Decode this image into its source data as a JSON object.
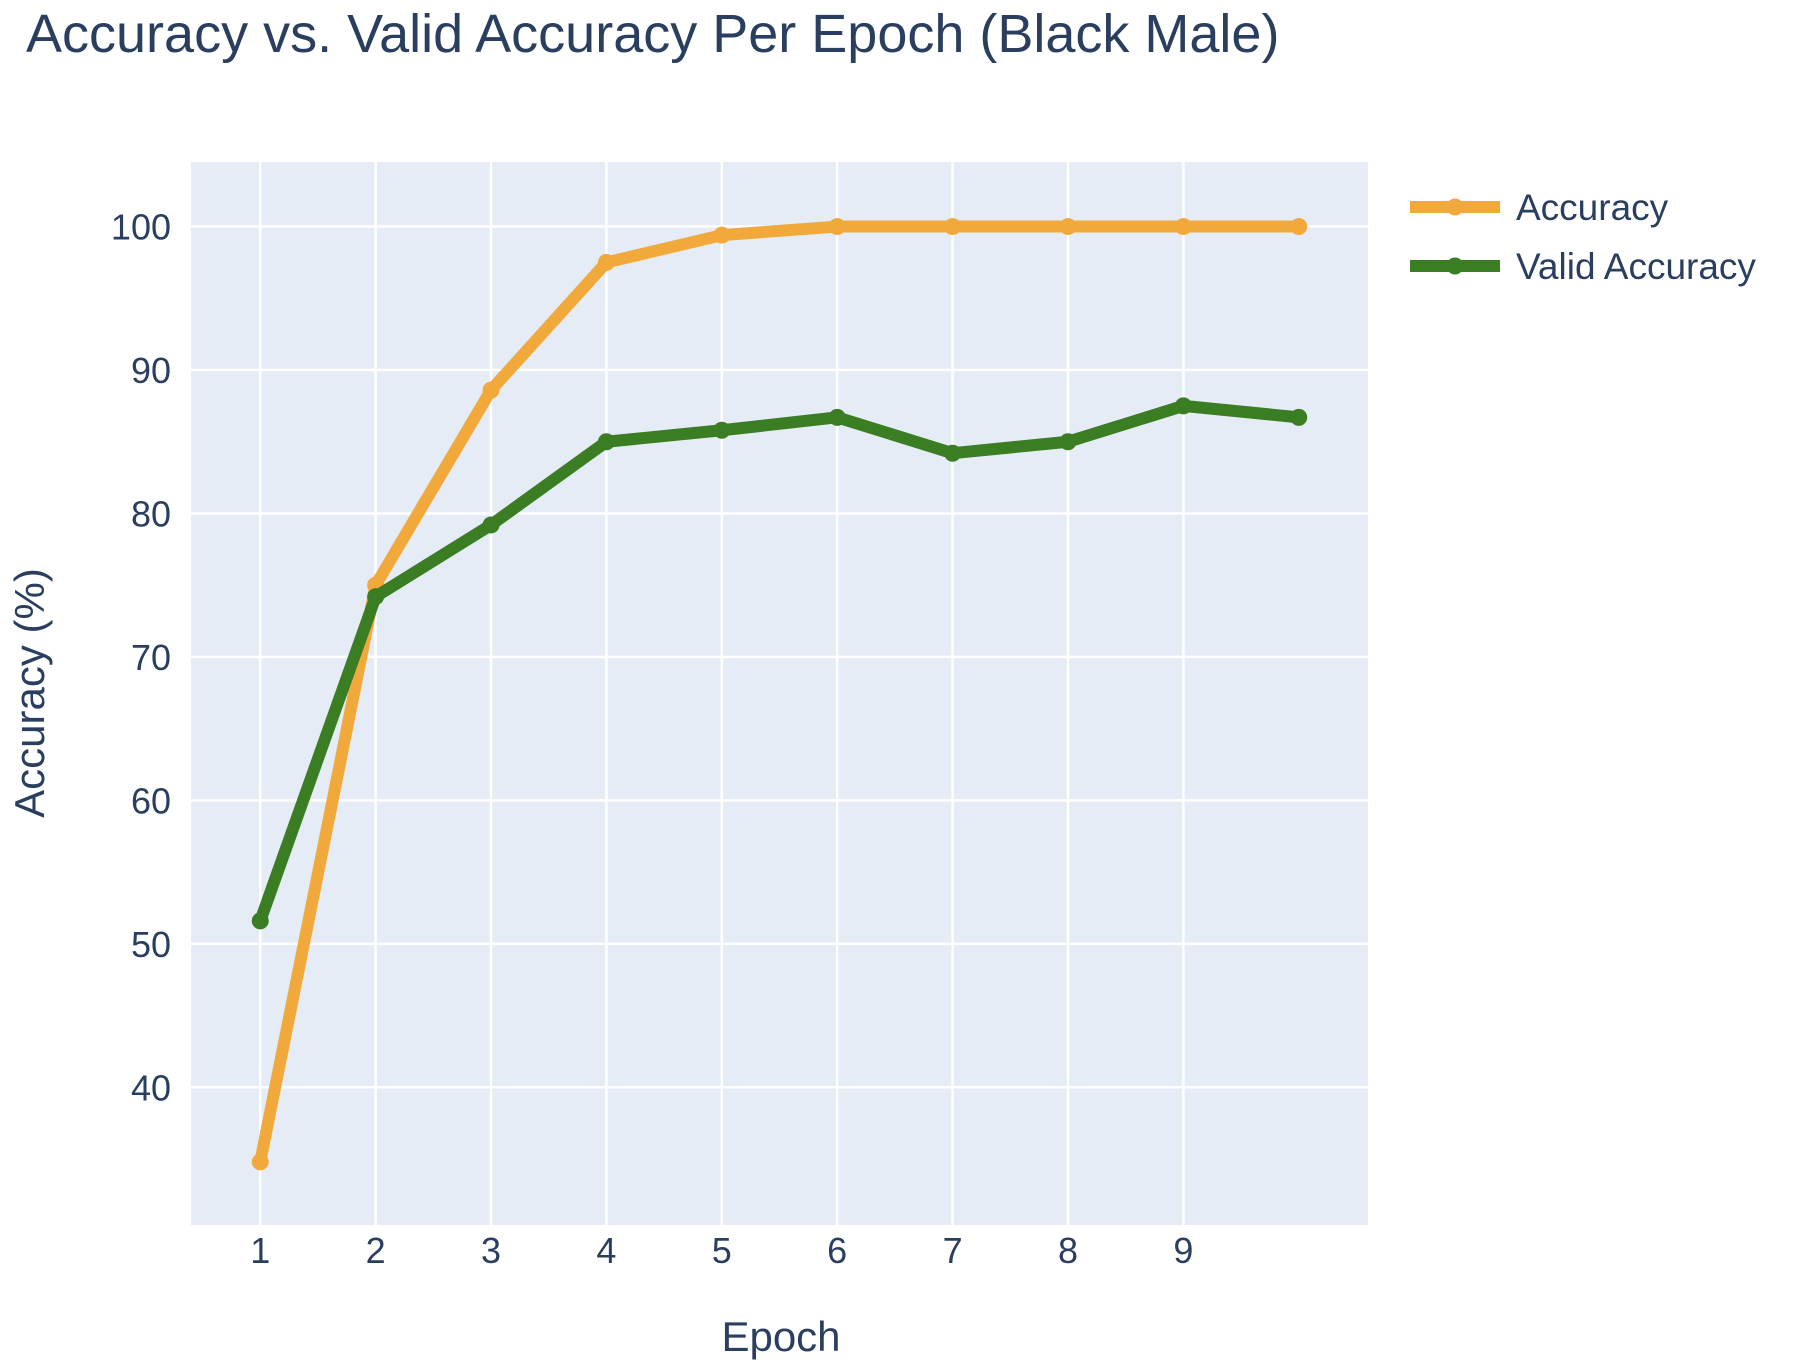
{
  "chart_data": {
    "type": "line",
    "title": "Accuracy vs. Valid Accuracy Per Epoch (Black Male)",
    "xlabel": "Epoch",
    "ylabel": "Accuracy (%)",
    "x": [
      1,
      2,
      3,
      4,
      5,
      6,
      7,
      8,
      9,
      10
    ],
    "x_tick_labels": [
      "1",
      "2",
      "3",
      "4",
      "5",
      "6",
      "7",
      "8",
      "9"
    ],
    "y_tick_labels": [
      "40",
      "50",
      "60",
      "70",
      "80",
      "90",
      "100"
    ],
    "xlim": [
      0.4,
      10.6
    ],
    "ylim": [
      30.4,
      104.5
    ],
    "grid": true,
    "legend_position": "top-right, outside plot area",
    "plot_background": "#e5ecf6",
    "text_color": "#2a3f5f",
    "series": [
      {
        "name": "Accuracy",
        "color": "#f2a93b",
        "values": [
          34.8,
          75.0,
          88.6,
          97.5,
          99.4,
          100.0,
          100.0,
          100.0,
          100.0,
          100.0
        ]
      },
      {
        "name": "Valid Accuracy",
        "color": "#3a7d22",
        "values": [
          51.6,
          74.2,
          79.2,
          85.0,
          85.8,
          86.7,
          84.2,
          85.0,
          87.5,
          86.7
        ]
      }
    ]
  }
}
